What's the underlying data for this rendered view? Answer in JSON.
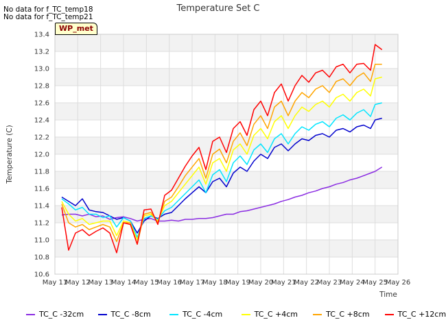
{
  "header": {
    "nodata_1": "No data for f_TC_temp18",
    "nodata_2": "No data for f_TC_temp21",
    "site_label": "WP_met"
  },
  "chart_data": {
    "type": "line",
    "title": "Temperature Set C",
    "xlabel": "Time",
    "ylabel": "Temperature (C)",
    "ylim": [
      10.6,
      13.4
    ],
    "xlim_days": [
      11,
      26
    ],
    "grid": true,
    "band_shading": true,
    "legend_placement": "bottom",
    "x_tick_labels": [
      "May 11",
      "May 12",
      "May 13",
      "May 14",
      "May 15",
      "May 16",
      "May 17",
      "May 18",
      "May 19",
      "May 20",
      "May 21",
      "May 22",
      "May 23",
      "May 24",
      "May 25",
      "May 26"
    ],
    "y_tick_labels": [
      "10.6",
      "10.8",
      "11.0",
      "11.2",
      "11.4",
      "11.6",
      "11.8",
      "12.0",
      "12.2",
      "12.4",
      "12.6",
      "12.8",
      "13.0",
      "13.2",
      "13.4"
    ],
    "x": [
      11.3,
      11.6,
      11.9,
      12.2,
      12.5,
      12.8,
      13.1,
      13.4,
      13.7,
      14.0,
      14.3,
      14.6,
      14.9,
      15.2,
      15.5,
      15.8,
      16.1,
      16.4,
      16.7,
      17.0,
      17.3,
      17.6,
      17.9,
      18.2,
      18.5,
      18.8,
      19.1,
      19.4,
      19.7,
      20.0,
      20.3,
      20.6,
      20.9,
      21.2,
      21.5,
      21.8,
      22.1,
      22.4,
      22.7,
      23.0,
      23.3,
      23.6,
      23.9,
      24.2,
      24.5,
      24.8,
      25.0,
      25.3
    ],
    "series": [
      {
        "name": "TC_C -32cm",
        "color": "#8a2be2",
        "values": [
          11.29,
          11.3,
          11.3,
          11.28,
          11.3,
          11.27,
          11.28,
          11.24,
          11.26,
          11.27,
          11.25,
          11.22,
          11.24,
          11.25,
          11.22,
          11.22,
          11.23,
          11.22,
          11.24,
          11.24,
          11.25,
          11.25,
          11.26,
          11.28,
          11.3,
          11.3,
          11.33,
          11.34,
          11.36,
          11.38,
          11.4,
          11.42,
          11.45,
          11.47,
          11.5,
          11.52,
          11.55,
          11.57,
          11.6,
          11.62,
          11.65,
          11.67,
          11.7,
          11.72,
          11.75,
          11.78,
          11.8,
          11.85
        ]
      },
      {
        "name": "TC_C -8cm",
        "color": "#0000cd",
        "values": [
          11.5,
          11.45,
          11.4,
          11.48,
          11.35,
          11.33,
          11.32,
          11.28,
          11.24,
          11.26,
          11.22,
          11.08,
          11.22,
          11.28,
          11.25,
          11.3,
          11.32,
          11.4,
          11.48,
          11.55,
          11.62,
          11.55,
          11.68,
          11.72,
          11.62,
          11.78,
          11.85,
          11.8,
          11.92,
          12.0,
          11.95,
          12.08,
          12.12,
          12.04,
          12.12,
          12.18,
          12.16,
          12.22,
          12.24,
          12.2,
          12.28,
          12.3,
          12.26,
          12.32,
          12.34,
          12.3,
          12.4,
          12.42
        ]
      },
      {
        "name": "TC_C -4cm",
        "color": "#00e5ff",
        "values": [
          11.48,
          11.42,
          11.35,
          11.38,
          11.3,
          11.3,
          11.26,
          11.28,
          11.15,
          11.26,
          11.22,
          11.03,
          11.25,
          11.28,
          11.24,
          11.34,
          11.38,
          11.46,
          11.54,
          11.62,
          11.7,
          11.55,
          11.76,
          11.82,
          11.68,
          11.9,
          11.98,
          11.88,
          12.05,
          12.12,
          12.02,
          12.18,
          12.24,
          12.12,
          12.24,
          12.32,
          12.28,
          12.35,
          12.38,
          12.32,
          12.42,
          12.46,
          12.4,
          12.48,
          12.52,
          12.44,
          12.58,
          12.6
        ]
      },
      {
        "name": "TC_C +4cm",
        "color": "#ffff00",
        "values": [
          11.45,
          11.3,
          11.22,
          11.25,
          11.18,
          11.2,
          11.22,
          11.22,
          11.05,
          11.22,
          11.2,
          11.0,
          11.28,
          11.3,
          11.22,
          11.4,
          11.45,
          11.55,
          11.65,
          11.75,
          11.85,
          11.65,
          11.9,
          11.95,
          11.8,
          12.05,
          12.12,
          12.0,
          12.22,
          12.3,
          12.18,
          12.38,
          12.45,
          12.3,
          12.45,
          12.55,
          12.5,
          12.58,
          12.62,
          12.55,
          12.66,
          12.7,
          12.62,
          12.72,
          12.76,
          12.68,
          12.88,
          12.9
        ]
      },
      {
        "name": "TC_C +8cm",
        "color": "#ffa500",
        "values": [
          11.42,
          11.2,
          11.15,
          11.18,
          11.12,
          11.15,
          11.18,
          11.15,
          10.98,
          11.2,
          11.2,
          10.95,
          11.3,
          11.32,
          11.2,
          11.45,
          11.5,
          11.62,
          11.75,
          11.85,
          11.95,
          11.72,
          12.0,
          12.06,
          11.9,
          12.15,
          12.25,
          12.1,
          12.35,
          12.45,
          12.3,
          12.55,
          12.62,
          12.45,
          12.62,
          12.72,
          12.66,
          12.76,
          12.8,
          12.72,
          12.85,
          12.88,
          12.8,
          12.9,
          12.95,
          12.85,
          13.05,
          13.05
        ]
      },
      {
        "name": "TC_C +12cm",
        "color": "#ff0000",
        "values": [
          11.38,
          10.88,
          11.08,
          11.12,
          11.05,
          11.1,
          11.14,
          11.08,
          10.85,
          11.2,
          11.18,
          10.95,
          11.35,
          11.36,
          11.18,
          11.52,
          11.58,
          11.72,
          11.86,
          11.98,
          12.08,
          11.82,
          12.15,
          12.2,
          12.02,
          12.3,
          12.38,
          12.22,
          12.52,
          12.62,
          12.45,
          12.72,
          12.82,
          12.62,
          12.8,
          12.92,
          12.84,
          12.95,
          12.98,
          12.9,
          13.02,
          13.05,
          12.95,
          13.05,
          13.06,
          12.98,
          13.28,
          13.22
        ]
      }
    ]
  }
}
